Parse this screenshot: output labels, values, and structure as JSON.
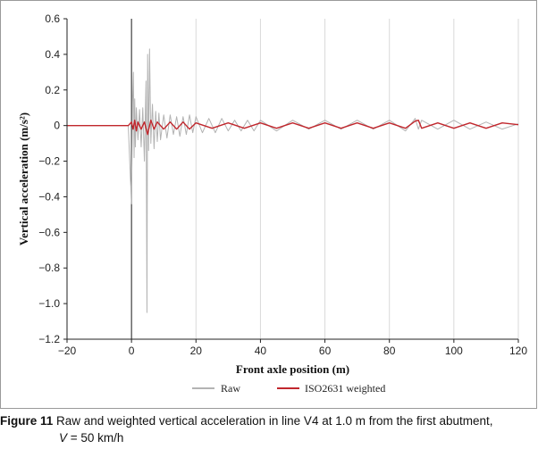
{
  "chart_data": {
    "type": "line",
    "xlabel": "Front axle position (m)",
    "ylabel": "Vertical acceleration (m/s²)",
    "xlim": [
      -20,
      120
    ],
    "ylim": [
      -1.2,
      0.6
    ],
    "x_ticks": [
      -20,
      0,
      20,
      40,
      60,
      80,
      100,
      120
    ],
    "y_ticks": [
      -1.2,
      -1.0,
      -0.8,
      -0.6,
      -0.4,
      -0.2,
      0,
      0.2,
      0.4,
      0.6
    ],
    "x_tick_labels": [
      "−20",
      "0",
      "20",
      "40",
      "60",
      "80",
      "100",
      "120"
    ],
    "y_tick_labels": [
      "−1.2",
      "−1.0",
      "−0.8",
      "−0.6",
      "−0.4",
      "−0.2",
      "0",
      "0.2",
      "0.4",
      "0.6"
    ],
    "grid": "vertical",
    "legend_position": "bottom-center",
    "series": [
      {
        "name": "Raw",
        "color": "#b3b3b3",
        "x": [
          -20,
          -1,
          0,
          0.3,
          0.6,
          0.8,
          1.0,
          1.2,
          1.5,
          2.0,
          2.5,
          3.0,
          3.5,
          4.0,
          4.5,
          4.8,
          5.0,
          5.3,
          5.6,
          6.0,
          6.5,
          7.0,
          7.5,
          8.0,
          8.5,
          9.0,
          10,
          11,
          12,
          13,
          14,
          15,
          16,
          17,
          18,
          19,
          20,
          22,
          24,
          26,
          28,
          30,
          32,
          34,
          36,
          38,
          40,
          45,
          50,
          55,
          60,
          65,
          70,
          75,
          80,
          85,
          88,
          89,
          90,
          95,
          100,
          105,
          110,
          115,
          120
        ],
        "y": [
          0,
          0,
          -0.44,
          0.12,
          0.3,
          -0.18,
          0.15,
          -0.12,
          0.1,
          -0.08,
          0.09,
          -0.12,
          0.1,
          -0.2,
          0.25,
          -1.05,
          0.4,
          -0.14,
          0.43,
          -0.1,
          0.12,
          -0.13,
          0.08,
          -0.09,
          0.07,
          -0.08,
          0.06,
          -0.07,
          0.06,
          -0.05,
          0.05,
          -0.06,
          0.05,
          -0.05,
          0.06,
          -0.04,
          0.05,
          -0.04,
          0.04,
          -0.04,
          0.04,
          -0.03,
          0.03,
          -0.03,
          0.03,
          -0.03,
          0.03,
          -0.03,
          0.03,
          -0.02,
          0.03,
          -0.02,
          0.03,
          -0.02,
          0.03,
          -0.03,
          0.04,
          -0.02,
          0.03,
          -0.02,
          0.03,
          -0.02,
          0.02,
          -0.02,
          0.01
        ]
      },
      {
        "name": "ISO2631 weighted",
        "color": "#c1272d",
        "x": [
          -20,
          -1,
          0,
          0.5,
          1.0,
          1.5,
          2.0,
          3.0,
          4.0,
          5.0,
          6.0,
          7.0,
          8.0,
          10,
          12,
          14,
          16,
          18,
          20,
          25,
          30,
          35,
          40,
          45,
          50,
          55,
          60,
          65,
          70,
          75,
          80,
          85,
          88,
          89,
          90,
          95,
          100,
          105,
          110,
          115,
          120
        ],
        "y": [
          0,
          0,
          0.02,
          -0.02,
          0.03,
          -0.03,
          0.02,
          -0.02,
          0.02,
          -0.05,
          0.03,
          -0.02,
          0.02,
          -0.02,
          0.02,
          -0.02,
          0.02,
          -0.02,
          0.015,
          -0.015,
          0.015,
          -0.015,
          0.015,
          -0.015,
          0.015,
          -0.015,
          0.015,
          -0.015,
          0.015,
          -0.015,
          0.015,
          -0.015,
          0.025,
          0.03,
          -0.015,
          0.015,
          -0.015,
          0.015,
          -0.015,
          0.015,
          0.005
        ]
      }
    ]
  },
  "caption": {
    "label": "Figure 11",
    "text_line1": " Raw and weighted vertical acceleration in line V4 at 1.0 m from the first abutment,",
    "text_line2_var": "V",
    "text_line2": " = 50 km/h"
  }
}
